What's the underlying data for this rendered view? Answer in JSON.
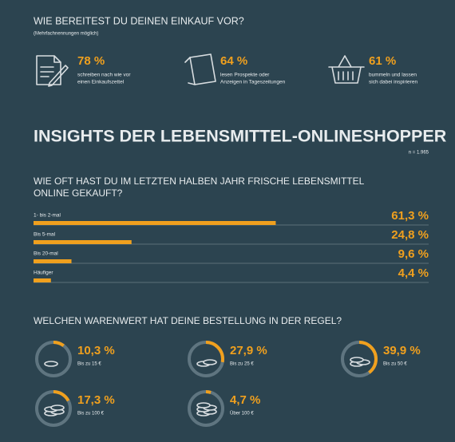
{
  "intro": {
    "title": "WIE BEREITEST DU DEINEN EINKAUF VOR?",
    "note": "(Mehrfachnennungen möglich)",
    "items": [
      {
        "value": "78 %",
        "lines": [
          "schreiben nach wie vor",
          "einen Einkaufszettel"
        ]
      },
      {
        "value": "64 %",
        "lines": [
          "lesen Prospekte oder",
          "Anzeigen in Tageszeitungen"
        ]
      },
      {
        "value": "61 %",
        "lines": [
          "bummeln und lassen",
          "sich dabei inspirieren"
        ]
      }
    ]
  },
  "headline": "INSIGHTS DER LEBENSMITTEL-ONLINESHOPPER",
  "sample": "n = 1.965",
  "frequency": {
    "title_lines": [
      "WIE OFT HAST DU IM LETZTEN HALBEN JAHR FRISCHE LEBENSMITTEL",
      "ONLINE GEKAUFT?"
    ],
    "categories": [
      "1- bis 2-mal",
      "Bis 5-mal",
      "Bis 20-mal",
      "Häufiger"
    ],
    "values": [
      61.3,
      24.8,
      9.6,
      4.4
    ],
    "value_labels": [
      "61,3 %",
      "24,8 %",
      "9,6 %",
      "4,4 %"
    ],
    "xlim": [
      0,
      100
    ],
    "color": "#f0a01e"
  },
  "order_value": {
    "title": "WELCHEN WARENWERT HAT DEINE BESTELLUNG IN DER REGEL?",
    "labels": [
      "Bis zu 15 €",
      "Bis zu 25 €",
      "Bis zu 50 €",
      "Bis zu 100 €",
      "Über 100 €"
    ],
    "values": [
      10.3,
      27.9,
      39.9,
      17.3,
      4.7
    ],
    "value_labels": [
      "10,3 %",
      "27,9 %",
      "39,9 %",
      "17,3 %",
      "4,7 %"
    ],
    "range": [
      0,
      100
    ],
    "color": "#f0a01e"
  }
}
